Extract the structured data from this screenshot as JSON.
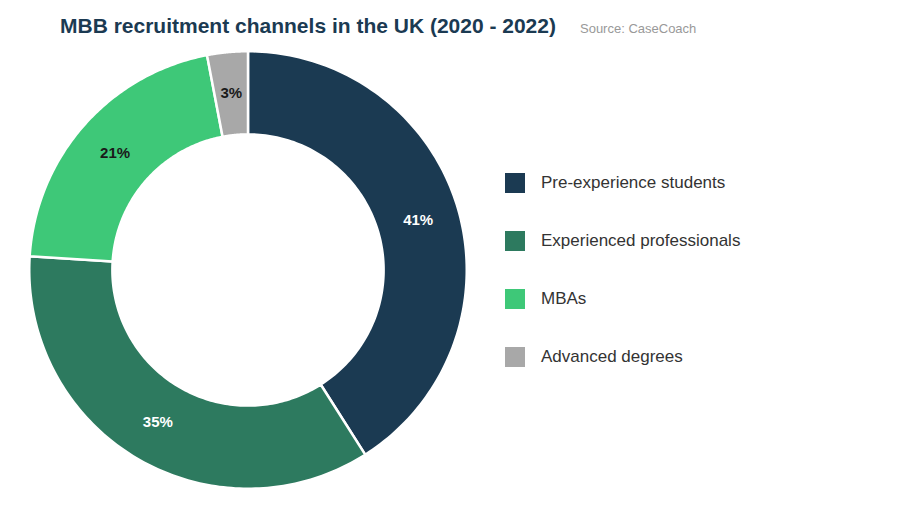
{
  "chart_data": {
    "type": "pie",
    "title": "MBB recruitment channels in the UK (2020 - 2022)",
    "annotations": [
      "Source: CaseCoach"
    ],
    "categories": [
      "Pre-experience students",
      "Experienced professionals",
      "MBAs",
      "Advanced degrees"
    ],
    "values": [
      41,
      35,
      21,
      3
    ],
    "value_labels": [
      "41%",
      "35%",
      "21%",
      "3%"
    ],
    "colors": [
      "#1b3a52",
      "#2d7a5f",
      "#3ec878",
      "#a8a8a8"
    ],
    "data_labels": true,
    "legend": "right"
  }
}
